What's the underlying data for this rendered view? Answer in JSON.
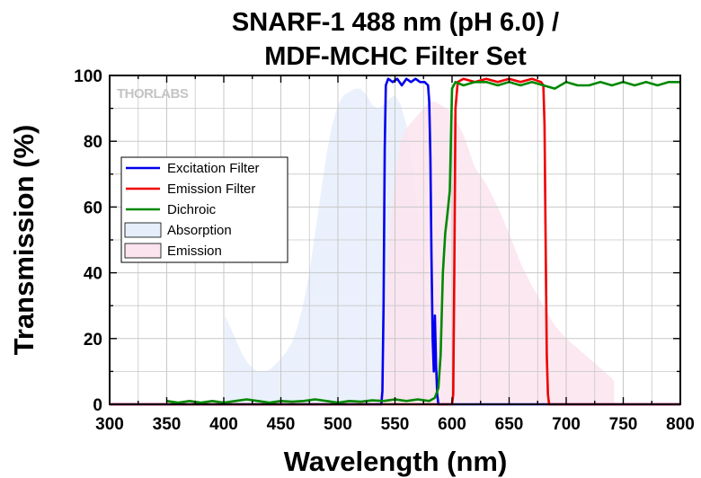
{
  "chart_data": {
    "type": "line",
    "title_lines": [
      "SNARF-1 488 nm (pH 6.0) /",
      "MDF-MCHC Filter Set"
    ],
    "xlabel": "Wavelength (nm)",
    "ylabel": "Transmission (%)",
    "xlim": [
      300,
      800
    ],
    "ylim": [
      0,
      100
    ],
    "xticks": [
      300,
      350,
      400,
      450,
      500,
      550,
      600,
      650,
      700,
      750,
      800
    ],
    "yticks": [
      0,
      20,
      40,
      60,
      80,
      100
    ],
    "grid": true,
    "legend_position": "left",
    "logo_text": "THORLABS",
    "series": [
      {
        "name": "Excitation Filter",
        "kind": "line",
        "color": "#0000ee",
        "x": [
          300,
          538,
          539,
          540,
          541,
          542,
          544,
          548,
          552,
          556,
          560,
          564,
          568,
          572,
          576,
          579,
          580,
          581,
          582,
          583,
          584,
          585,
          586,
          587,
          588,
          800
        ],
        "y": [
          0,
          0,
          4,
          30,
          78,
          97,
          99,
          98,
          99,
          97,
          99,
          98,
          99,
          98,
          98,
          97,
          92,
          75,
          45,
          20,
          10,
          27,
          12,
          3,
          0,
          0
        ]
      },
      {
        "name": "Emission Filter",
        "kind": "line",
        "color": "#ee0000",
        "x": [
          300,
          600,
          601,
          602,
          603,
          605,
          610,
          620,
          630,
          640,
          650,
          660,
          670,
          678,
          680,
          681,
          682,
          683,
          684,
          685,
          800
        ],
        "y": [
          0,
          0,
          3,
          40,
          90,
          98,
          99,
          98,
          99,
          98,
          99,
          98,
          99,
          98,
          97,
          85,
          50,
          15,
          3,
          0,
          0
        ]
      },
      {
        "name": "Dichroic",
        "kind": "line",
        "color": "#008800",
        "x": [
          350,
          360,
          370,
          380,
          390,
          400,
          410,
          420,
          430,
          440,
          450,
          460,
          470,
          480,
          490,
          500,
          510,
          520,
          530,
          540,
          550,
          560,
          570,
          580,
          585,
          588,
          590,
          592,
          594,
          596,
          598,
          600,
          603,
          610,
          620,
          630,
          640,
          650,
          660,
          670,
          680,
          690,
          700,
          710,
          720,
          730,
          740,
          750,
          760,
          770,
          780,
          790,
          800
        ],
        "y": [
          1,
          0.5,
          1,
          0.5,
          1,
          0.5,
          1,
          1.5,
          1,
          0.5,
          1,
          0.8,
          1,
          1.5,
          1,
          0.5,
          1,
          0.8,
          1.2,
          1,
          1.5,
          1,
          1.5,
          1,
          2,
          5,
          15,
          40,
          52,
          58,
          65,
          96,
          98,
          97,
          98,
          98,
          97,
          98,
          97,
          98,
          97,
          96,
          98,
          97,
          97,
          98,
          97,
          98,
          97,
          98,
          97,
          98,
          98
        ]
      },
      {
        "name": "Absorption",
        "kind": "area",
        "color": "#e6eefb",
        "x": [
          401,
          405,
          410,
          415,
          420,
          425,
          430,
          435,
          440,
          445,
          450,
          455,
          460,
          465,
          470,
          475,
          480,
          485,
          490,
          495,
          500,
          505,
          510,
          515,
          520,
          525,
          530,
          535,
          540,
          545,
          550,
          555,
          560,
          565,
          570,
          575,
          580,
          585,
          588
        ],
        "y": [
          27,
          24,
          20,
          16,
          13,
          11,
          10,
          10,
          10.5,
          12,
          14,
          16,
          19,
          24,
          31,
          40,
          52,
          64,
          76,
          85,
          91,
          94,
          95,
          96,
          96,
          94,
          91,
          90,
          91,
          93,
          94,
          91,
          85,
          74,
          58,
          38,
          19,
          6,
          2
        ]
      },
      {
        "name": "Emission",
        "kind": "area",
        "color": "#fbe4ee",
        "x": [
          533,
          537,
          540,
          545,
          550,
          555,
          560,
          565,
          570,
          575,
          580,
          585,
          590,
          595,
          600,
          610,
          620,
          630,
          640,
          650,
          660,
          670,
          680,
          690,
          700,
          710,
          720,
          730,
          740,
          742
        ],
        "y": [
          0,
          5,
          22,
          50,
          70,
          80,
          84,
          86,
          88,
          90,
          92,
          92,
          91,
          90,
          89,
          82,
          72,
          67,
          60,
          52,
          43,
          36,
          30,
          24,
          20,
          17,
          14,
          11,
          8,
          7
        ]
      }
    ]
  }
}
